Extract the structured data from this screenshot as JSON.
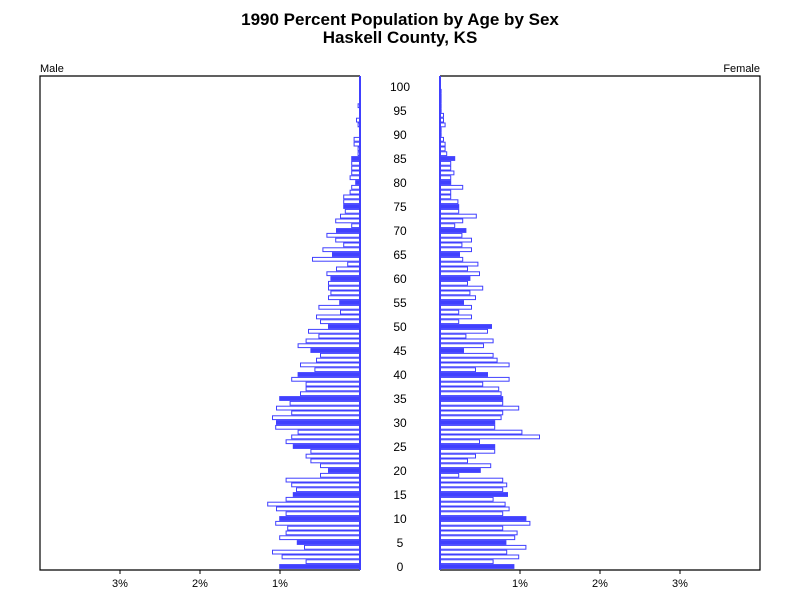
{
  "chart_data": {
    "type": "bar",
    "orientation": "horizontal-pyramid",
    "title": "1990 Percent Population by Age by Sex",
    "subtitle": "Haskell County, KS",
    "left_label": "Male",
    "right_label": "Female",
    "xlabel_ticks": [
      "3%",
      "2%",
      "1%",
      "1%",
      "2%",
      "3%"
    ],
    "tick_values_male": [
      3,
      2,
      1
    ],
    "tick_values_female": [
      1,
      2,
      3
    ],
    "xlim": [
      0,
      4
    ],
    "age_tick_labels": [
      "0",
      "5",
      "10",
      "15",
      "20",
      "25",
      "30",
      "35",
      "40",
      "45",
      "50",
      "55",
      "60",
      "65",
      "70",
      "75",
      "80",
      "85",
      "90",
      "95",
      "100"
    ],
    "ages": [
      0,
      1,
      2,
      3,
      4,
      5,
      6,
      7,
      8,
      9,
      10,
      11,
      12,
      13,
      14,
      15,
      16,
      17,
      18,
      19,
      20,
      21,
      22,
      23,
      24,
      25,
      26,
      27,
      28,
      29,
      30,
      31,
      32,
      33,
      34,
      35,
      36,
      37,
      38,
      39,
      40,
      41,
      42,
      43,
      44,
      45,
      46,
      47,
      48,
      49,
      50,
      51,
      52,
      53,
      54,
      55,
      56,
      57,
      58,
      59,
      60,
      61,
      62,
      63,
      64,
      65,
      66,
      67,
      68,
      69,
      70,
      71,
      72,
      73,
      74,
      75,
      76,
      77,
      78,
      79,
      80,
      81,
      82,
      83,
      84,
      85,
      86,
      87,
      88,
      89,
      90,
      91,
      92,
      93,
      94,
      95,
      96,
      97,
      98,
      99,
      100
    ],
    "series": [
      {
        "name": "Male",
        "values": [
          1.01,
          0.68,
          0.98,
          1.1,
          0.7,
          0.79,
          1.01,
          0.93,
          0.91,
          1.06,
          1.01,
          0.93,
          1.05,
          1.16,
          0.93,
          0.84,
          0.8,
          0.86,
          0.93,
          0.5,
          0.4,
          0.5,
          0.62,
          0.68,
          0.62,
          0.84,
          0.93,
          0.86,
          0.78,
          1.06,
          1.05,
          1.1,
          0.86,
          1.05,
          0.88,
          1.01,
          0.75,
          0.68,
          0.68,
          0.86,
          0.78,
          0.57,
          0.75,
          0.55,
          0.5,
          0.62,
          0.78,
          0.68,
          0.52,
          0.65,
          0.4,
          0.5,
          0.55,
          0.25,
          0.52,
          0.26,
          0.4,
          0.37,
          0.4,
          0.4,
          0.37,
          0.42,
          0.3,
          0.16,
          0.6,
          0.35,
          0.47,
          0.21,
          0.31,
          0.42,
          0.3,
          0.11,
          0.31,
          0.25,
          0.19,
          0.21,
          0.21,
          0.21,
          0.13,
          0.11,
          0.06,
          0.13,
          0.11,
          0.11,
          0.11,
          0.11,
          0.03,
          0.03,
          0.08,
          0.08,
          0,
          0,
          0.03,
          0.05,
          0,
          0,
          0.03,
          0,
          0,
          0,
          0
        ]
      },
      {
        "name": "Female",
        "values": [
          0.93,
          0.67,
          0.99,
          0.84,
          1.08,
          0.83,
          0.94,
          0.97,
          0.79,
          1.13,
          1.08,
          0.79,
          0.87,
          0.82,
          0.67,
          0.85,
          0.79,
          0.84,
          0.79,
          0.24,
          0.51,
          0.64,
          0.35,
          0.45,
          0.69,
          0.69,
          0.5,
          1.25,
          1.03,
          0.69,
          0.69,
          0.77,
          0.79,
          0.99,
          0.79,
          0.79,
          0.77,
          0.74,
          0.54,
          0.87,
          0.6,
          0.45,
          0.87,
          0.72,
          0.67,
          0.3,
          0.55,
          0.67,
          0.33,
          0.6,
          0.65,
          0.24,
          0.4,
          0.24,
          0.4,
          0.3,
          0.45,
          0.38,
          0.54,
          0.35,
          0.38,
          0.5,
          0.35,
          0.48,
          0.29,
          0.25,
          0.4,
          0.28,
          0.4,
          0.28,
          0.33,
          0.19,
          0.29,
          0.46,
          0.24,
          0.24,
          0.23,
          0.14,
          0.14,
          0.29,
          0.14,
          0.14,
          0.18,
          0.14,
          0.14,
          0.19,
          0.09,
          0.07,
          0.07,
          0.05,
          0.02,
          0.02,
          0.07,
          0.05,
          0.05,
          0.02,
          0.02,
          0.02,
          0.02,
          0.02,
          0
        ]
      }
    ],
    "grid": false,
    "colors": {
      "bar": "#4040ff",
      "axis": "#000000"
    }
  }
}
